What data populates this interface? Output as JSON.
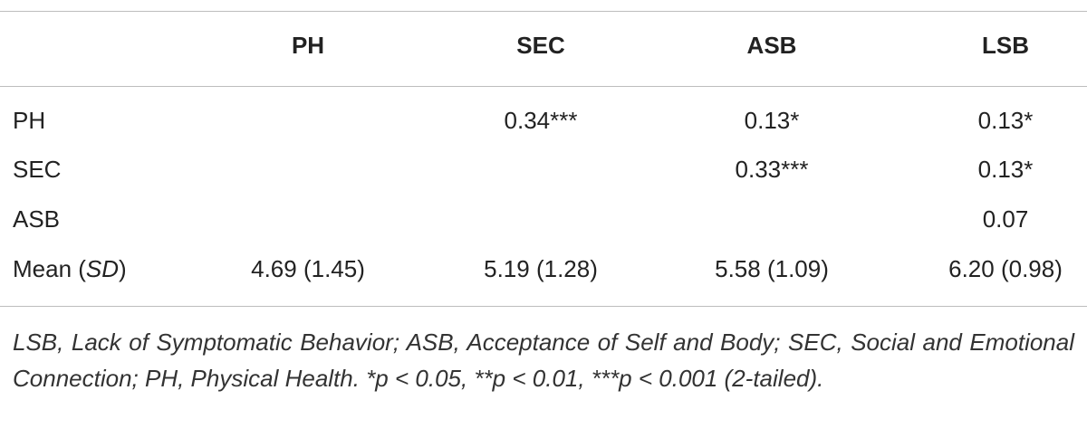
{
  "table": {
    "columns": [
      "PH",
      "SEC",
      "ASB",
      "LSB"
    ],
    "rows": [
      {
        "label": "PH",
        "cells": [
          null,
          "0.34***",
          "0.13*",
          "0.13*"
        ]
      },
      {
        "label": "SEC",
        "cells": [
          null,
          null,
          "0.33***",
          "0.13*"
        ]
      },
      {
        "label": "ASB",
        "cells": [
          null,
          null,
          null,
          "0.07"
        ]
      },
      {
        "label_before": "Mean (",
        "label_italic": "SD",
        "label_after": ")",
        "cells": [
          "4.69 (1.45)",
          "5.19 (1.28)",
          "5.58 (1.09)",
          "6.20 (0.98)"
        ]
      }
    ],
    "footnote": "LSB, Lack of Symptomatic Behavior; ASB, Acceptance of Self and Body; SEC, Social and Emotional Connection; PH, Physical Health. *p < 0.05, **p < 0.01, ***p < 0.001 (2-tailed)."
  }
}
